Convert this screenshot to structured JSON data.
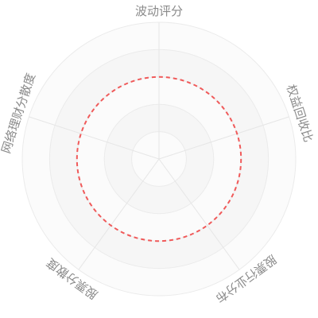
{
  "chart_data": {
    "type": "radar",
    "indicators": [
      "波动评分",
      "权益回收比",
      "股票行业分布",
      "股票分散度",
      "网络理财分散度"
    ],
    "rings": 5,
    "series": [
      {
        "values": [
          0.6,
          0.6,
          0.6,
          0.6,
          0.6
        ]
      }
    ],
    "max": 1,
    "line_style": "dashed",
    "colors": {
      "series_line": "#f05a5a",
      "axis_line": "#e6e6e6",
      "ring_line": "#ebebeb",
      "band_dark": "#f6f6f6",
      "band_light": "#fbfbfb",
      "label": "#8a8a8a"
    }
  }
}
